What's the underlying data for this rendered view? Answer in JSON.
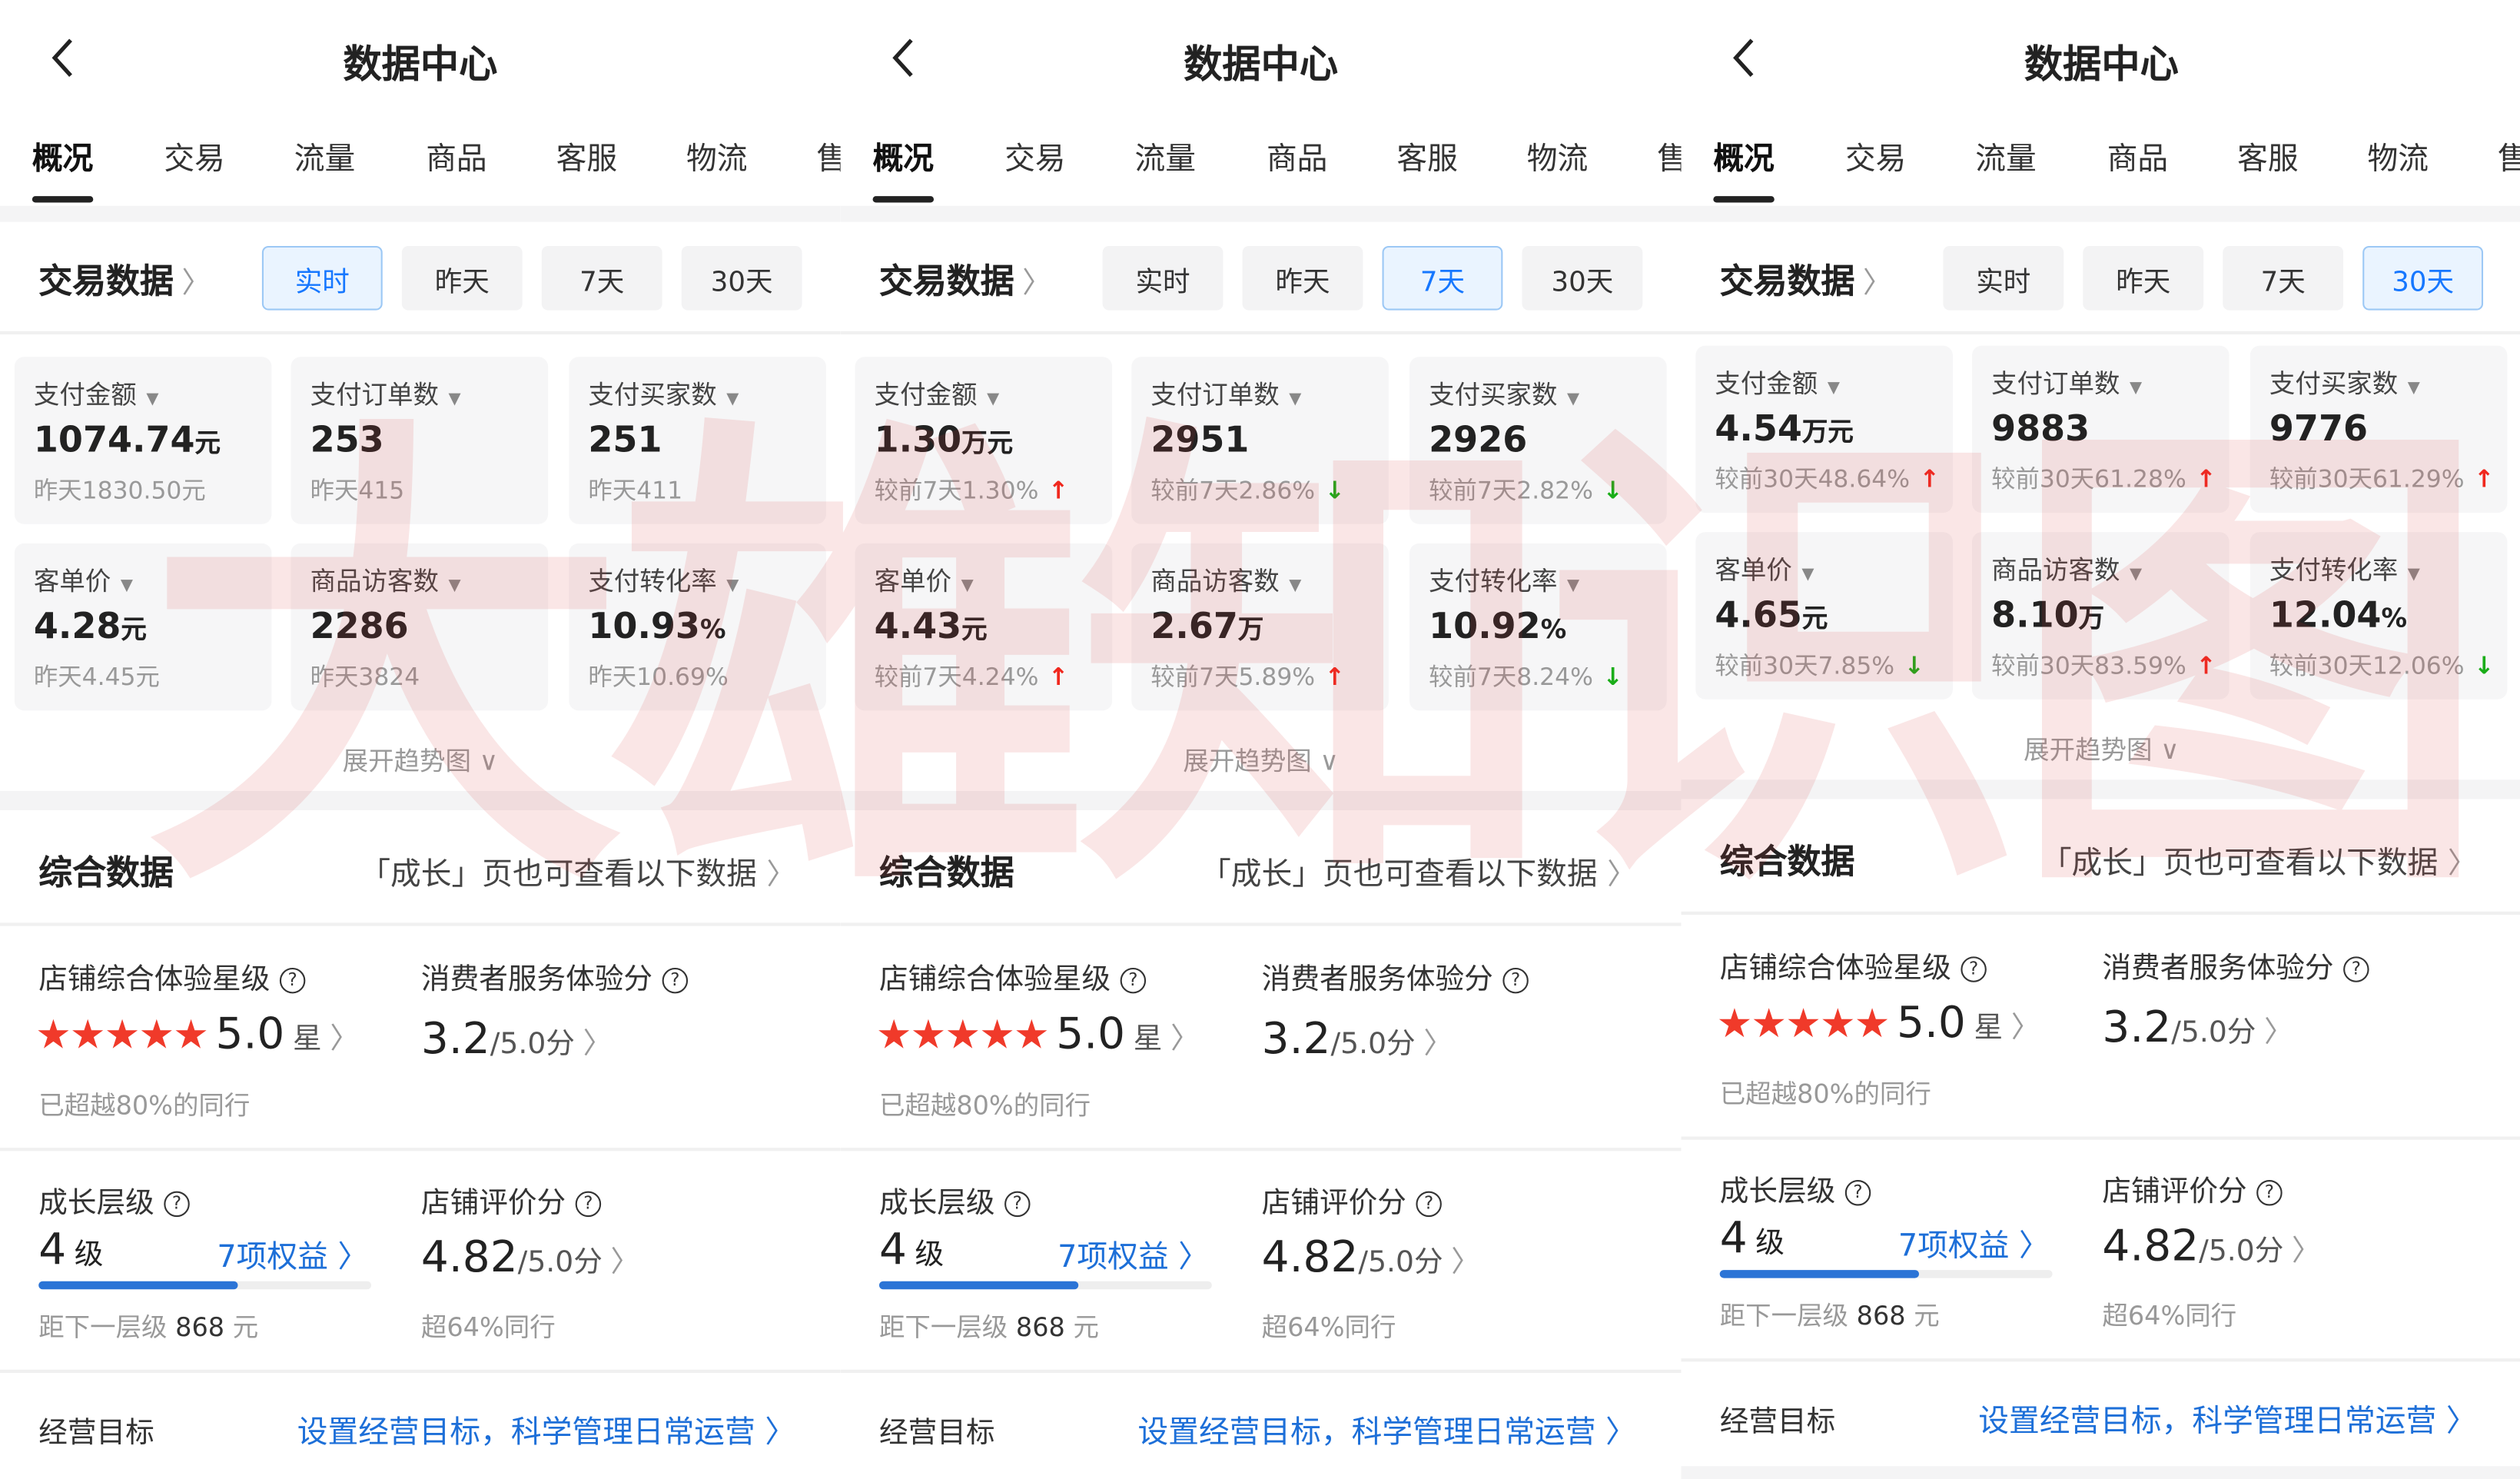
{
  "watermark": "大雄知识图",
  "colors": {
    "accent": "#1677ff",
    "up": "#f0281e",
    "down": "#1aad19",
    "star": "#f03a2a",
    "progress": "#2b74d6"
  },
  "common": {
    "title": "数据中心",
    "tabs": [
      "概况",
      "交易",
      "流量",
      "商品",
      "客服",
      "物流",
      "售"
    ],
    "trade_title": "交易数据",
    "periods": [
      "实时",
      "昨天",
      "7天",
      "30天"
    ],
    "expand": "展开趋势图",
    "composite_title": "综合数据",
    "composite_link": "「成长」页也可查看以下数据",
    "star_label": "店铺综合体验星级",
    "star_value": "5.0",
    "star_unit": "星",
    "star_rating": 5,
    "star_sub": "已超越80%的同行",
    "service_label": "消费者服务体验分",
    "service_value": "3.2",
    "service_unit": "/5.0分",
    "growth_label": "成长层级",
    "growth_value": "4",
    "growth_unit": "级",
    "growth_benefits": "7项权益",
    "growth_progress_pct": 60,
    "growth_sub_prefix": "距下一层级",
    "growth_sub_value": "868",
    "growth_sub_unit": "元",
    "review_label": "店铺评价分",
    "review_value": "4.82",
    "review_unit": "/5.0分",
    "review_sub": "超64%同行",
    "goal_label": "经营目标",
    "goal_link": "设置经营目标，科学管理日常运营"
  },
  "panels": [
    {
      "active_period": 0,
      "cards": [
        {
          "label": "支付金额",
          "value": "1074.74",
          "unit": "元",
          "compare": "昨天1830.50元",
          "trend": ""
        },
        {
          "label": "支付订单数",
          "value": "253",
          "unit": "",
          "compare": "昨天415",
          "trend": ""
        },
        {
          "label": "支付买家数",
          "value": "251",
          "unit": "",
          "compare": "昨天411",
          "trend": ""
        },
        {
          "label": "客单价",
          "value": "4.28",
          "unit": "元",
          "compare": "昨天4.45元",
          "trend": ""
        },
        {
          "label": "商品访客数",
          "value": "2286",
          "unit": "",
          "compare": "昨天3824",
          "trend": ""
        },
        {
          "label": "支付转化率",
          "value": "10.93",
          "unit": "%",
          "compare": "昨天10.69%",
          "trend": ""
        }
      ]
    },
    {
      "active_period": 2,
      "cards": [
        {
          "label": "支付金额",
          "value": "1.30",
          "unit": "万元",
          "compare": "较前7天1.30%",
          "trend": "up"
        },
        {
          "label": "支付订单数",
          "value": "2951",
          "unit": "",
          "compare": "较前7天2.86%",
          "trend": "down"
        },
        {
          "label": "支付买家数",
          "value": "2926",
          "unit": "",
          "compare": "较前7天2.82%",
          "trend": "down"
        },
        {
          "label": "客单价",
          "value": "4.43",
          "unit": "元",
          "compare": "较前7天4.24%",
          "trend": "up"
        },
        {
          "label": "商品访客数",
          "value": "2.67",
          "unit": "万",
          "compare": "较前7天5.89%",
          "trend": "up"
        },
        {
          "label": "支付转化率",
          "value": "10.92",
          "unit": "%",
          "compare": "较前7天8.24%",
          "trend": "down"
        }
      ]
    },
    {
      "active_period": 3,
      "cards": [
        {
          "label": "支付金额",
          "value": "4.54",
          "unit": "万元",
          "compare": "较前30天48.64%",
          "trend": "up"
        },
        {
          "label": "支付订单数",
          "value": "9883",
          "unit": "",
          "compare": "较前30天61.28%",
          "trend": "up"
        },
        {
          "label": "支付买家数",
          "value": "9776",
          "unit": "",
          "compare": "较前30天61.29%",
          "trend": "up"
        },
        {
          "label": "客单价",
          "value": "4.65",
          "unit": "元",
          "compare": "较前30天7.85%",
          "trend": "down"
        },
        {
          "label": "商品访客数",
          "value": "8.10",
          "unit": "万",
          "compare": "较前30天83.59%",
          "trend": "up"
        },
        {
          "label": "支付转化率",
          "value": "12.04",
          "unit": "%",
          "compare": "较前30天12.06%",
          "trend": "down"
        }
      ]
    }
  ]
}
